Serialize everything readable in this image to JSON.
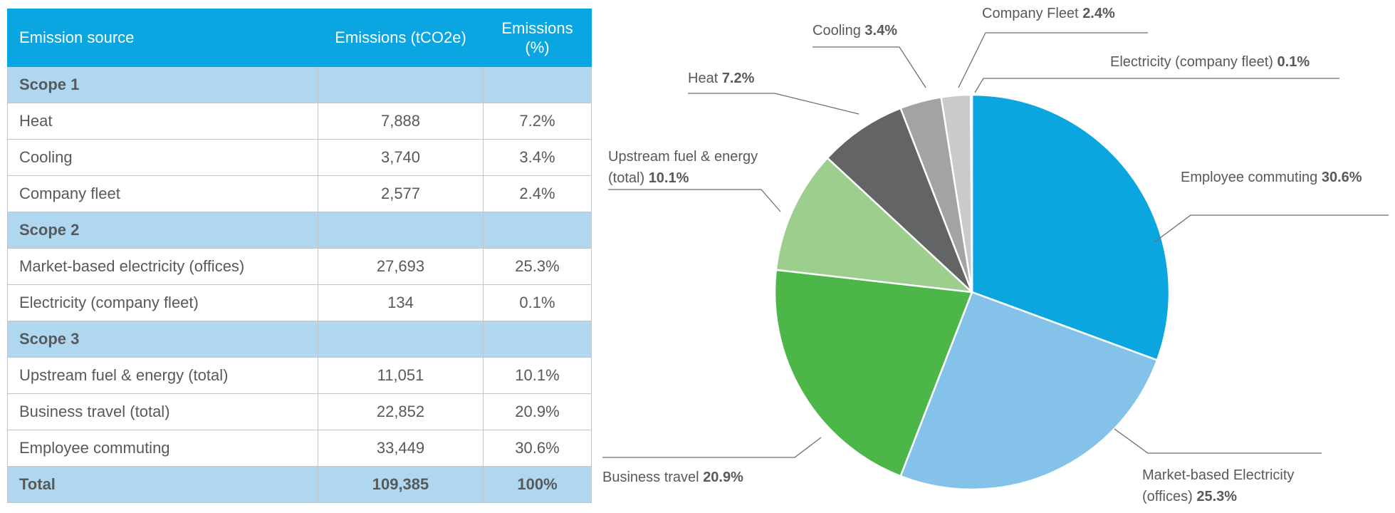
{
  "table": {
    "headers": [
      "Emission source",
      "Emissions (tCO2e)",
      "Emissions (%)"
    ],
    "rows": [
      {
        "type": "scope",
        "source": "Scope 1",
        "tco2e": "",
        "pct": ""
      },
      {
        "type": "item",
        "source": "Heat",
        "tco2e": "7,888",
        "pct": "7.2%"
      },
      {
        "type": "item",
        "source": "Cooling",
        "tco2e": "3,740",
        "pct": "3.4%"
      },
      {
        "type": "item",
        "source": "Company fleet",
        "tco2e": "2,577",
        "pct": "2.4%"
      },
      {
        "type": "scope",
        "source": "Scope 2",
        "tco2e": "",
        "pct": ""
      },
      {
        "type": "item",
        "source": "Market-based electricity (offices)",
        "tco2e": "27,693",
        "pct": "25.3%"
      },
      {
        "type": "item",
        "source": "Electricity (company fleet)",
        "tco2e": "134",
        "pct": "0.1%"
      },
      {
        "type": "scope",
        "source": "Scope 3",
        "tco2e": "",
        "pct": ""
      },
      {
        "type": "item",
        "source": "Upstream fuel & energy (total)",
        "tco2e": "11,051",
        "pct": "10.1%"
      },
      {
        "type": "item",
        "source": "Business travel (total)",
        "tco2e": "22,852",
        "pct": "20.9%"
      },
      {
        "type": "item",
        "source": "Employee commuting",
        "tco2e": "33,449",
        "pct": "30.6%"
      },
      {
        "type": "total",
        "source": "Total",
        "tco2e": "109,385",
        "pct": "100%"
      }
    ]
  },
  "chart_data": {
    "type": "pie",
    "title": "",
    "slices": [
      {
        "label": "Employee commuting",
        "value": 30.6,
        "value_label": "30.6%",
        "color": "#0ba6e0"
      },
      {
        "label": "Market-based Electricity (offices)",
        "value": 25.3,
        "value_label": "25.3%",
        "color": "#84c2ea"
      },
      {
        "label": "Business travel",
        "value": 20.9,
        "value_label": "20.9%",
        "color": "#4cb748"
      },
      {
        "label": "Upstream fuel & energy (total)",
        "value": 10.1,
        "value_label": "10.1%",
        "color": "#9ccf8d"
      },
      {
        "label": "Heat",
        "value": 7.2,
        "value_label": "7.2%",
        "color": "#636466"
      },
      {
        "label": "Cooling",
        "value": 3.4,
        "value_label": "3.4%",
        "color": "#a1a3a5"
      },
      {
        "label": "Company Fleet",
        "value": 2.4,
        "value_label": "2.4%",
        "color": "#c9cacc"
      },
      {
        "label": "Electricity (company fleet)",
        "value": 0.1,
        "value_label": "0.1%",
        "color": "#e3e4e5"
      }
    ]
  }
}
